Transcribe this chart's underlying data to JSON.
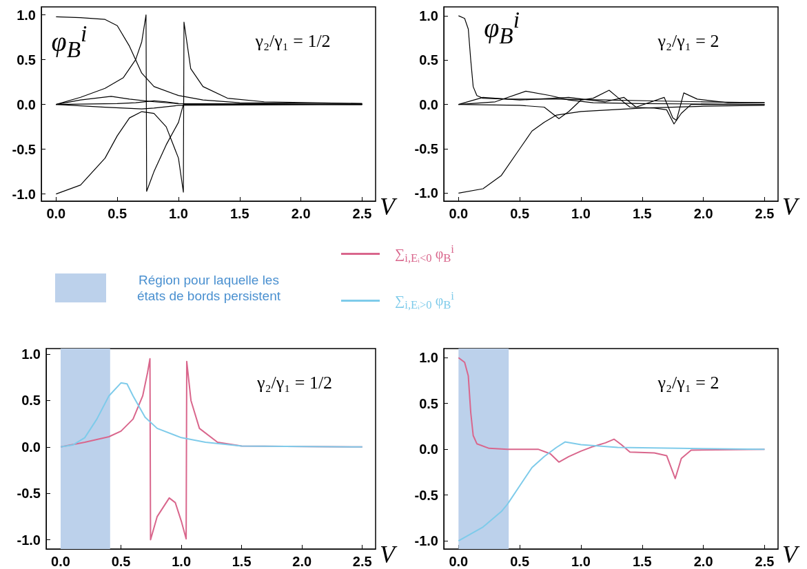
{
  "chart_data": [
    {
      "type": "line",
      "xlabel": "V",
      "annotations": [
        "φ$_{B}$$^{i}$",
        "γ₂/γ₁ = 1/2"
      ],
      "xlim": [
        -0.12,
        2.61
      ],
      "ylim": [
        -1.08,
        1.09
      ],
      "xticks": [
        {
          "value": 0,
          "label": "0.0"
        },
        {
          "value": 0.5,
          "label": "0.5"
        },
        {
          "value": 1,
          "label": "1.0"
        },
        {
          "value": 1.5,
          "label": "1.5"
        },
        {
          "value": 2,
          "label": "2.0"
        },
        {
          "value": 2.5,
          "label": "2.5"
        }
      ],
      "yticks": [
        {
          "value": -1,
          "label": "-1.0"
        },
        {
          "value": -0.5,
          "label": "-0.5"
        },
        {
          "value": 0,
          "label": "0.0"
        },
        {
          "value": 0.5,
          "label": "0.5"
        },
        {
          "value": 1,
          "label": "1.0"
        }
      ],
      "marker": "none",
      "line_style": "solid",
      "series": [
        {
          "color": "#000000",
          "x": [
            0,
            0.2,
            0.4,
            0.5,
            0.6,
            0.65,
            0.7,
            0.8,
            1.0,
            1.2,
            1.5,
            2.5
          ],
          "values": [
            0.98,
            0.97,
            0.95,
            0.88,
            0.65,
            0.5,
            0.35,
            0.2,
            0.1,
            0.05,
            0.02,
            0.01
          ]
        },
        {
          "color": "#000000",
          "x": [
            0,
            0.2,
            0.4,
            0.55,
            0.65,
            0.7,
            0.735,
            0.74,
            0.8,
            0.9,
            1.0,
            1.04,
            1.2,
            2.5
          ],
          "values": [
            0,
            0.08,
            0.18,
            0.3,
            0.5,
            0.7,
            1.0,
            -0.97,
            -0.75,
            -0.45,
            -0.2,
            0,
            0,
            0
          ]
        },
        {
          "color": "#000000",
          "x": [
            0,
            0.2,
            0.4,
            0.5,
            0.6,
            0.7,
            0.8,
            0.9,
            1.0,
            1.04,
            1.045,
            1.1,
            1.2,
            1.4,
            1.7,
            2.5
          ],
          "values": [
            -1.0,
            -0.9,
            -0.6,
            -0.35,
            -0.15,
            -0.08,
            -0.1,
            -0.25,
            -0.6,
            -0.98,
            0.92,
            0.4,
            0.2,
            0.07,
            0.03,
            0.01
          ]
        },
        {
          "color": "#000000",
          "x": [
            0,
            0.2,
            0.45,
            0.6,
            0.8,
            1.0,
            2.5
          ],
          "values": [
            0,
            0.05,
            0.09,
            0.06,
            0.03,
            0.01,
            0
          ]
        },
        {
          "color": "#000000",
          "x": [
            0,
            0.5,
            0.65,
            0.8,
            0.9,
            1.0,
            2.5
          ],
          "values": [
            0,
            0.01,
            0.02,
            0.04,
            0.03,
            0.01,
            0
          ]
        },
        {
          "color": "#000000",
          "x": [
            0,
            0.4,
            0.7,
            0.8,
            1.0,
            2.5
          ],
          "values": [
            0,
            -0.03,
            -0.05,
            -0.04,
            -0.01,
            0
          ]
        }
      ]
    },
    {
      "type": "line",
      "xlabel": "V",
      "annotations": [
        "φ$_{B}$$^{i}$",
        "γ₂/γ₁ = 2"
      ],
      "xlim": [
        -0.12,
        2.61
      ],
      "ylim": [
        -1.09,
        1.1
      ],
      "xticks": [
        {
          "value": 0,
          "label": "0.0"
        },
        {
          "value": 0.5,
          "label": "0.5"
        },
        {
          "value": 1,
          "label": "1.0"
        },
        {
          "value": 1.5,
          "label": "1.5"
        },
        {
          "value": 2,
          "label": "2.0"
        },
        {
          "value": 2.5,
          "label": "2.5"
        }
      ],
      "yticks": [
        {
          "value": -1,
          "label": "-1.0"
        },
        {
          "value": -0.5,
          "label": "-0.5"
        },
        {
          "value": 0,
          "label": "0.0"
        },
        {
          "value": 0.5,
          "label": "0.5"
        },
        {
          "value": 1,
          "label": "1.0"
        }
      ],
      "marker": "none",
      "line_style": "solid",
      "series": [
        {
          "color": "#000000",
          "x": [
            0,
            0.05,
            0.08,
            0.1,
            0.12,
            0.15,
            0.2,
            0.4,
            0.8,
            1.2,
            1.6,
            2.0,
            2.5
          ],
          "values": [
            1.0,
            0.97,
            0.85,
            0.5,
            0.2,
            0.1,
            0.07,
            0.06,
            0.06,
            0.05,
            0.04,
            0.03,
            0.02
          ]
        },
        {
          "color": "#000000",
          "x": [
            0,
            0.2,
            0.35,
            0.5,
            0.6,
            0.7,
            0.8,
            1.0,
            1.5,
            2.0,
            2.5
          ],
          "values": [
            -1.0,
            -0.95,
            -0.8,
            -0.5,
            -0.3,
            -0.2,
            -0.12,
            -0.08,
            -0.04,
            -0.02,
            -0.01
          ]
        },
        {
          "color": "#000000",
          "x": [
            0,
            0.3,
            0.55,
            0.75,
            0.9,
            1.1,
            1.5,
            2.5
          ],
          "values": [
            0,
            0.03,
            0.15,
            0.1,
            0.05,
            0.02,
            0.01,
            0
          ]
        },
        {
          "color": "#000000",
          "x": [
            0,
            0.5,
            0.7,
            0.82,
            0.9,
            1.0,
            1.1,
            1.23,
            1.3,
            1.4,
            1.6,
            1.7,
            1.76,
            1.82,
            1.9,
            2.5
          ],
          "values": [
            0,
            -0.01,
            -0.03,
            -0.16,
            -0.08,
            0.05,
            0.07,
            0.16,
            0.08,
            -0.03,
            -0.04,
            -0.06,
            -0.22,
            -0.1,
            0,
            0
          ]
        },
        {
          "color": "#000000",
          "x": [
            0,
            0.2,
            0.5,
            0.9,
            1.2,
            1.35,
            1.45,
            1.68,
            1.75,
            1.78,
            1.84,
            1.95,
            2.2,
            2.5
          ],
          "values": [
            0,
            0.08,
            0.05,
            0.08,
            0.03,
            0.08,
            -0.03,
            0.08,
            -0.15,
            -0.18,
            0.13,
            0.06,
            0.02,
            0.02
          ]
        }
      ]
    },
    {
      "type": "line",
      "xlabel": "V",
      "annotations": [
        "γ₂/γ₁ = 1/2"
      ],
      "xlim": [
        -0.12,
        2.61
      ],
      "ylim": [
        -1.1,
        1.06
      ],
      "xticks": [
        {
          "value": 0,
          "label": "0.0"
        },
        {
          "value": 0.5,
          "label": "0.5"
        },
        {
          "value": 1,
          "label": "1.0"
        },
        {
          "value": 1.5,
          "label": "1.5"
        },
        {
          "value": 2,
          "label": "2.0"
        },
        {
          "value": 2.5,
          "label": "2.5"
        }
      ],
      "yticks": [
        {
          "value": -1,
          "label": "-1.0"
        },
        {
          "value": -0.5,
          "label": "-0.5"
        },
        {
          "value": 0,
          "label": "0.0"
        },
        {
          "value": 0.5,
          "label": "0.5"
        },
        {
          "value": 1,
          "label": "1.0"
        }
      ],
      "marker": "none",
      "line_style": "solid",
      "legend": "top",
      "bands": [
        {
          "axis": "x",
          "from": 0,
          "to": 0.41,
          "label": "Région pour laquelle les états de bords persistent",
          "color": "#bcd1eb"
        }
      ],
      "series": [
        {
          "name": "∑$_{i,Eᵢ<0}$ φ$_{B}$$^{i}$",
          "color": "#d9668c",
          "x": [
            0,
            0.2,
            0.4,
            0.5,
            0.6,
            0.68,
            0.72,
            0.74,
            0.745,
            0.8,
            0.9,
            0.95,
            1.0,
            1.04,
            1.045,
            1.08,
            1.15,
            1.3,
            1.5,
            2.5
          ],
          "values": [
            0,
            0.05,
            0.11,
            0.17,
            0.3,
            0.55,
            0.8,
            0.95,
            -1.0,
            -0.75,
            -0.55,
            -0.6,
            -0.8,
            -0.99,
            0.92,
            0.5,
            0.2,
            0.05,
            0.01,
            0
          ]
        },
        {
          "name": "∑$_{i,Eᵢ>0}$ φ$_{B}$$^{i}$",
          "color": "#7ecbea",
          "x": [
            0,
            0.1,
            0.2,
            0.3,
            0.4,
            0.5,
            0.55,
            0.6,
            0.7,
            0.8,
            1.0,
            1.2,
            1.5,
            2.5
          ],
          "values": [
            0,
            0.02,
            0.1,
            0.3,
            0.55,
            0.69,
            0.68,
            0.55,
            0.32,
            0.2,
            0.1,
            0.05,
            0.01,
            0
          ]
        }
      ]
    },
    {
      "type": "line",
      "xlabel": "V",
      "annotations": [
        "γ₂/γ₁ = 2"
      ],
      "xlim": [
        -0.12,
        2.61
      ],
      "ylim": [
        -1.09,
        1.1
      ],
      "xticks": [
        {
          "value": 0,
          "label": "0.0"
        },
        {
          "value": 0.5,
          "label": "0.5"
        },
        {
          "value": 1,
          "label": "1.0"
        },
        {
          "value": 1.5,
          "label": "1.5"
        },
        {
          "value": 2,
          "label": "2.0"
        },
        {
          "value": 2.5,
          "label": "2.5"
        }
      ],
      "yticks": [
        {
          "value": -1,
          "label": "-1.0"
        },
        {
          "value": -0.5,
          "label": "-0.5"
        },
        {
          "value": 0,
          "label": "0.0"
        },
        {
          "value": 0.5,
          "label": "0.5"
        },
        {
          "value": 1,
          "label": "1.0"
        }
      ],
      "marker": "none",
      "line_style": "solid",
      "bands": [
        {
          "axis": "x",
          "from": 0,
          "to": 0.41,
          "color": "#bcd1eb"
        }
      ],
      "series": [
        {
          "color": "#d9668c",
          "x": [
            0,
            0.05,
            0.08,
            0.1,
            0.12,
            0.15,
            0.25,
            0.4,
            0.65,
            0.75,
            0.82,
            0.9,
            1.0,
            1.1,
            1.2,
            1.27,
            1.33,
            1.4,
            1.6,
            1.7,
            1.77,
            1.82,
            1.9,
            2.5
          ],
          "values": [
            1.0,
            0.95,
            0.8,
            0.4,
            0.15,
            0.06,
            0.01,
            0,
            0,
            -0.05,
            -0.14,
            -0.08,
            -0.02,
            0.03,
            0.07,
            0.11,
            0.05,
            -0.03,
            -0.04,
            -0.07,
            -0.32,
            -0.1,
            -0.01,
            0
          ]
        },
        {
          "color": "#7ecbea",
          "x": [
            0,
            0.2,
            0.35,
            0.4,
            0.5,
            0.6,
            0.7,
            0.8,
            0.87,
            1.0,
            1.3,
            1.8,
            2.5
          ],
          "values": [
            -1.0,
            -0.85,
            -0.68,
            -0.6,
            -0.4,
            -0.2,
            -0.08,
            0.02,
            0.08,
            0.05,
            0.02,
            0.01,
            0
          ]
        }
      ]
    }
  ]
}
